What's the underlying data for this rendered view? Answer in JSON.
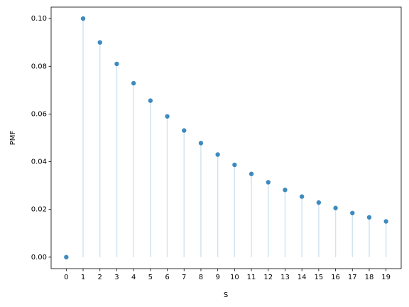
{
  "chart_data": {
    "type": "stem",
    "x": [
      0,
      1,
      2,
      3,
      4,
      5,
      6,
      7,
      8,
      9,
      10,
      11,
      12,
      13,
      14,
      15,
      16,
      17,
      18,
      19
    ],
    "values": [
      0,
      0.1,
      0.09,
      0.081,
      0.0729,
      0.0656,
      0.059,
      0.0531,
      0.0478,
      0.043,
      0.0387,
      0.0349,
      0.0314,
      0.0282,
      0.0254,
      0.0229,
      0.0206,
      0.0185,
      0.0167,
      0.015
    ],
    "color": "#1f77b4",
    "xlabel": "S",
    "ylabel": "PMF",
    "xlim": [
      -0.9,
      19.9
    ],
    "ylim": [
      -0.0048,
      0.1048
    ],
    "xticks": [
      0,
      1,
      2,
      3,
      4,
      5,
      6,
      7,
      8,
      9,
      10,
      11,
      12,
      13,
      14,
      15,
      16,
      17,
      18,
      19
    ],
    "yticks": [
      {
        "value": 0,
        "label": "0.00"
      },
      {
        "value": 0.02,
        "label": "0.02"
      },
      {
        "value": 0.04,
        "label": "0.04"
      },
      {
        "value": 0.06,
        "label": "0.06"
      },
      {
        "value": 0.08,
        "label": "0.08"
      },
      {
        "value": 0.1,
        "label": "0.10"
      }
    ]
  }
}
